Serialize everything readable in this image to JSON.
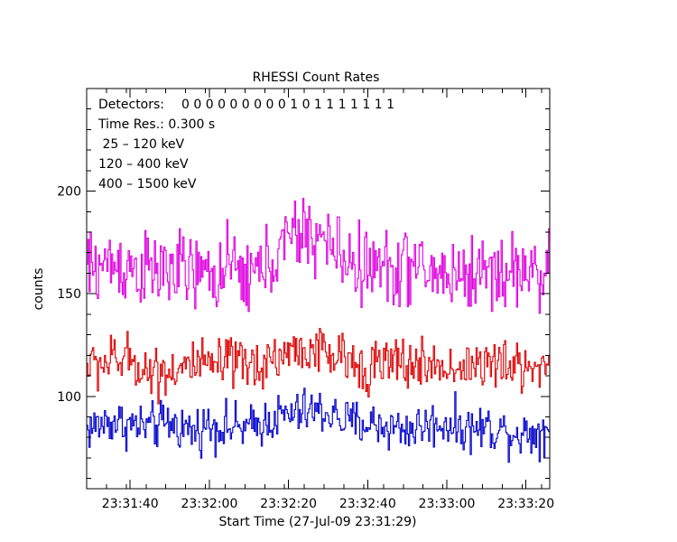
{
  "chart_data": {
    "type": "line",
    "title": "RHESSI Count Rates",
    "xlabel": "Start Time (27-Jul-09 23:31:29)",
    "ylabel": "counts",
    "x_start": "23:31:29",
    "x_end": "23:33:26",
    "x_step_s": 0.3,
    "xlim_s": [
      0,
      117
    ],
    "ylim": [
      55,
      250
    ],
    "x_ticks": [
      "23:31:40",
      "23:32:00",
      "23:32:20",
      "23:32:40",
      "23:33:00",
      "23:33:20"
    ],
    "y_ticks": [
      100,
      150,
      200
    ],
    "legend_placement": "top-left",
    "info": {
      "detectors_label": "Detectors:",
      "detectors_value": "0 0 0 0 0 0 0 0 0 1 0 1 1 1 1 1 1 1",
      "time_res": "Time Res.: 0.300 s"
    },
    "series": [
      {
        "name": " 25 – 120 keV",
        "color": "#0000cc",
        "anchors": [
          [
            0,
            84
          ],
          [
            6,
            88
          ],
          [
            11,
            86
          ],
          [
            16,
            85
          ],
          [
            21,
            87
          ],
          [
            27,
            83
          ],
          [
            30,
            86
          ],
          [
            36,
            85
          ],
          [
            41,
            84
          ],
          [
            46,
            89
          ],
          [
            52,
            91
          ],
          [
            56,
            93
          ],
          [
            61,
            92
          ],
          [
            66,
            87
          ],
          [
            71,
            87
          ],
          [
            76,
            85
          ],
          [
            81,
            84
          ],
          [
            86,
            86
          ],
          [
            91,
            87
          ],
          [
            96,
            84
          ],
          [
            101,
            85
          ],
          [
            106,
            83
          ],
          [
            111,
            82
          ],
          [
            117,
            84
          ]
        ],
        "noise": 9
      },
      {
        "name": "120 – 400 keV",
        "color": "#e000e0",
        "anchors": [
          [
            0,
            162
          ],
          [
            6,
            165
          ],
          [
            11,
            163
          ],
          [
            16,
            160
          ],
          [
            21,
            162
          ],
          [
            27,
            160
          ],
          [
            30,
            158
          ],
          [
            36,
            162
          ],
          [
            41,
            158
          ],
          [
            46,
            165
          ],
          [
            52,
            178
          ],
          [
            56,
            180
          ],
          [
            61,
            174
          ],
          [
            66,
            166
          ],
          [
            71,
            163
          ],
          [
            76,
            162
          ],
          [
            81,
            164
          ],
          [
            86,
            160
          ],
          [
            91,
            160
          ],
          [
            96,
            159
          ],
          [
            101,
            162
          ],
          [
            106,
            160
          ],
          [
            111,
            162
          ],
          [
            117,
            160
          ]
        ],
        "noise": 15
      },
      {
        "name": "400 – 1500 keV",
        "color": "#dd0000",
        "anchors": [
          [
            0,
            115
          ],
          [
            6,
            117
          ],
          [
            11,
            118
          ],
          [
            16,
            112
          ],
          [
            21,
            113
          ],
          [
            27,
            115
          ],
          [
            30,
            114
          ],
          [
            36,
            116
          ],
          [
            41,
            114
          ],
          [
            46,
            118
          ],
          [
            52,
            122
          ],
          [
            56,
            123
          ],
          [
            61,
            120
          ],
          [
            66,
            117
          ],
          [
            71,
            115
          ],
          [
            76,
            116
          ],
          [
            81,
            116
          ],
          [
            86,
            115
          ],
          [
            91,
            114
          ],
          [
            96,
            115
          ],
          [
            101,
            116
          ],
          [
            106,
            114
          ],
          [
            111,
            115
          ],
          [
            117,
            115
          ]
        ],
        "noise": 10
      }
    ]
  }
}
